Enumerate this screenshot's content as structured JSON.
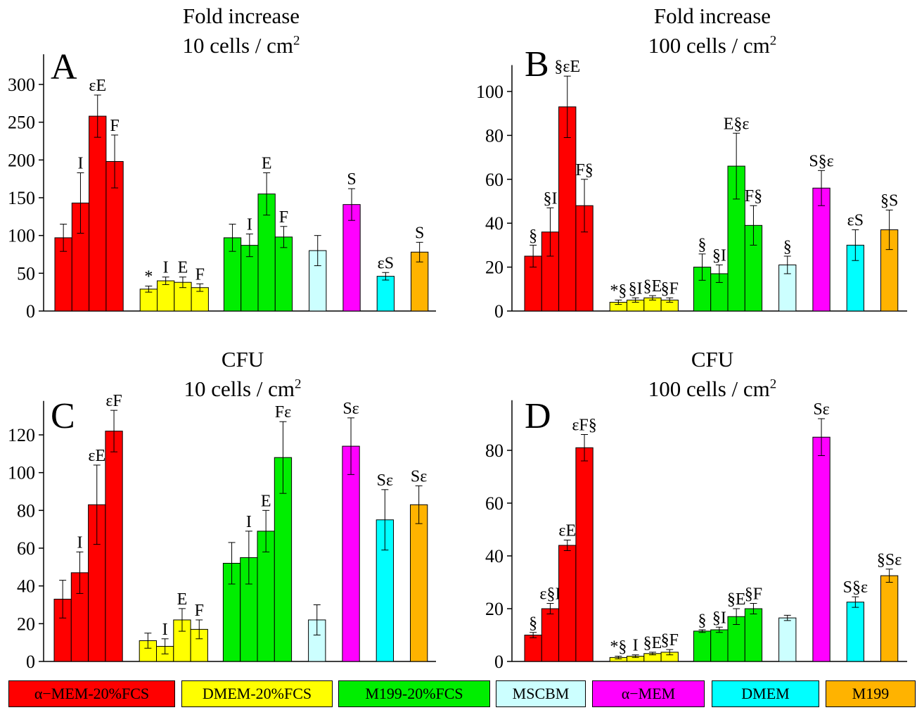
{
  "panels": [
    {
      "letter": "A",
      "title_line1": "Fold increase",
      "title_line2": "10 cells / cm",
      "title_sup": "2"
    },
    {
      "letter": "B",
      "title_line1": "Fold increase",
      "title_line2": "100 cells / cm",
      "title_sup": "2"
    },
    {
      "letter": "C",
      "title_line1": "CFU",
      "title_line2": "10 cells / cm",
      "title_sup": "2"
    },
    {
      "letter": "D",
      "title_line1": "CFU",
      "title_line2": "100 cells / cm",
      "title_sup": "2"
    }
  ],
  "legend": [
    {
      "label": "α−MEM-20%FCS",
      "color": "#ff0000"
    },
    {
      "label": "DMEM-20%FCS",
      "color": "#ffff00"
    },
    {
      "label": "M199-20%FCS",
      "color": "#00ee00"
    },
    {
      "label": "MSCBM",
      "color": "#ccffff"
    },
    {
      "label": "α−MEM",
      "color": "#ff00ff"
    },
    {
      "label": "DMEM",
      "color": "#00ffff"
    },
    {
      "label": "M199",
      "color": "#ffb300"
    }
  ],
  "chart_data": [
    {
      "type": "bar",
      "panel": "A",
      "yticks": [
        0,
        50,
        100,
        150,
        200,
        250,
        300
      ],
      "ylim": [
        0,
        340
      ],
      "groups": [
        {
          "medium": "α−MEM-20%FCS",
          "values": [
            97,
            143,
            258,
            198
          ],
          "errors": [
            18,
            40,
            28,
            35
          ],
          "labels": [
            "",
            "I",
            "εE",
            "F"
          ]
        },
        {
          "medium": "DMEM-20%FCS",
          "values": [
            29,
            40,
            38,
            31
          ],
          "errors": [
            4,
            5,
            7,
            5
          ],
          "labels": [
            "*",
            "I",
            "E",
            "F"
          ]
        },
        {
          "medium": "M199-20%FCS",
          "values": [
            97,
            87,
            155,
            98
          ],
          "errors": [
            18,
            15,
            28,
            14
          ],
          "labels": [
            "",
            "I",
            "E",
            "F"
          ]
        },
        {
          "medium": "MSCBM",
          "values": [
            80
          ],
          "errors": [
            20
          ],
          "labels": [
            ""
          ]
        },
        {
          "medium": "α−MEM",
          "values": [
            141
          ],
          "errors": [
            21
          ],
          "labels": [
            "S"
          ]
        },
        {
          "medium": "DMEM",
          "values": [
            46
          ],
          "errors": [
            5
          ],
          "labels": [
            "εS"
          ]
        },
        {
          "medium": "M199",
          "values": [
            78
          ],
          "errors": [
            13
          ],
          "labels": [
            "S"
          ]
        }
      ]
    },
    {
      "type": "bar",
      "panel": "B",
      "yticks": [
        0,
        20,
        40,
        60,
        80,
        100
      ],
      "ylim": [
        0,
        112
      ],
      "groups": [
        {
          "medium": "α−MEM-20%FCS",
          "values": [
            25,
            36,
            93,
            48
          ],
          "errors": [
            5,
            11,
            14,
            12
          ],
          "labels": [
            "§",
            "§I",
            "§εE",
            "F§"
          ]
        },
        {
          "medium": "DMEM-20%FCS",
          "values": [
            4,
            5,
            6,
            5
          ],
          "errors": [
            1,
            1,
            1,
            1
          ],
          "labels": [
            "*§",
            "§I",
            "§E",
            "§F"
          ]
        },
        {
          "medium": "M199-20%FCS",
          "values": [
            20,
            17,
            66,
            39
          ],
          "errors": [
            6,
            4,
            15,
            9
          ],
          "labels": [
            "§",
            "§I",
            "E§ε",
            "F§"
          ]
        },
        {
          "medium": "MSCBM",
          "values": [
            21
          ],
          "errors": [
            4
          ],
          "labels": [
            "§"
          ]
        },
        {
          "medium": "α−MEM",
          "values": [
            56
          ],
          "errors": [
            8
          ],
          "labels": [
            "S§ε"
          ]
        },
        {
          "medium": "DMEM",
          "values": [
            30
          ],
          "errors": [
            7
          ],
          "labels": [
            "εS"
          ]
        },
        {
          "medium": "M199",
          "values": [
            37
          ],
          "errors": [
            9
          ],
          "labels": [
            "§S"
          ]
        }
      ]
    },
    {
      "type": "bar",
      "panel": "C",
      "yticks": [
        0,
        20,
        40,
        60,
        80,
        100,
        120
      ],
      "ylim": [
        0,
        138
      ],
      "groups": [
        {
          "medium": "α−MEM-20%FCS",
          "values": [
            33,
            47,
            83,
            122
          ],
          "errors": [
            10,
            11,
            21,
            11
          ],
          "labels": [
            "",
            "I",
            "εE",
            "εF"
          ]
        },
        {
          "medium": "DMEM-20%FCS",
          "values": [
            11,
            8,
            22,
            17
          ],
          "errors": [
            4,
            4,
            6,
            5
          ],
          "labels": [
            "",
            "I",
            "E",
            "F"
          ]
        },
        {
          "medium": "M199-20%FCS",
          "values": [
            52,
            55,
            69,
            108
          ],
          "errors": [
            11,
            14,
            11,
            19
          ],
          "labels": [
            "",
            "I",
            "E",
            "Fε"
          ]
        },
        {
          "medium": "MSCBM",
          "values": [
            22
          ],
          "errors": [
            8
          ],
          "labels": [
            ""
          ]
        },
        {
          "medium": "α−MEM",
          "values": [
            114
          ],
          "errors": [
            15
          ],
          "labels": [
            "Sε"
          ]
        },
        {
          "medium": "DMEM",
          "values": [
            75
          ],
          "errors": [
            16
          ],
          "labels": [
            "Sε"
          ]
        },
        {
          "medium": "M199",
          "values": [
            83
          ],
          "errors": [
            10
          ],
          "labels": [
            "Sε"
          ]
        }
      ]
    },
    {
      "type": "bar",
      "panel": "D",
      "yticks": [
        0,
        20,
        40,
        60,
        80
      ],
      "ylim": [
        0,
        99
      ],
      "groups": [
        {
          "medium": "α−MEM-20%FCS",
          "values": [
            10,
            20,
            44,
            81
          ],
          "errors": [
            1,
            2,
            2,
            5
          ],
          "labels": [
            "§",
            "ε§I",
            "εE",
            "εF§"
          ]
        },
        {
          "medium": "DMEM-20%FCS",
          "values": [
            1.5,
            2,
            3,
            3.5
          ],
          "errors": [
            0.5,
            0.5,
            0.5,
            1
          ],
          "labels": [
            "*§",
            "I",
            "§E",
            "§F"
          ]
        },
        {
          "medium": "M199-20%FCS",
          "values": [
            11.5,
            12,
            17,
            20
          ],
          "errors": [
            0.5,
            1,
            3,
            2
          ],
          "labels": [
            "§",
            "§I",
            "§E",
            "§F"
          ]
        },
        {
          "medium": "MSCBM",
          "values": [
            16.5
          ],
          "errors": [
            1
          ],
          "labels": [
            ""
          ]
        },
        {
          "medium": "α−MEM",
          "values": [
            85
          ],
          "errors": [
            7
          ],
          "labels": [
            "Sε"
          ]
        },
        {
          "medium": "DMEM",
          "values": [
            22.5
          ],
          "errors": [
            2
          ],
          "labels": [
            "S§ε"
          ]
        },
        {
          "medium": "M199",
          "values": [
            32.5
          ],
          "errors": [
            2.5
          ],
          "labels": [
            "§Sε"
          ]
        }
      ]
    }
  ]
}
